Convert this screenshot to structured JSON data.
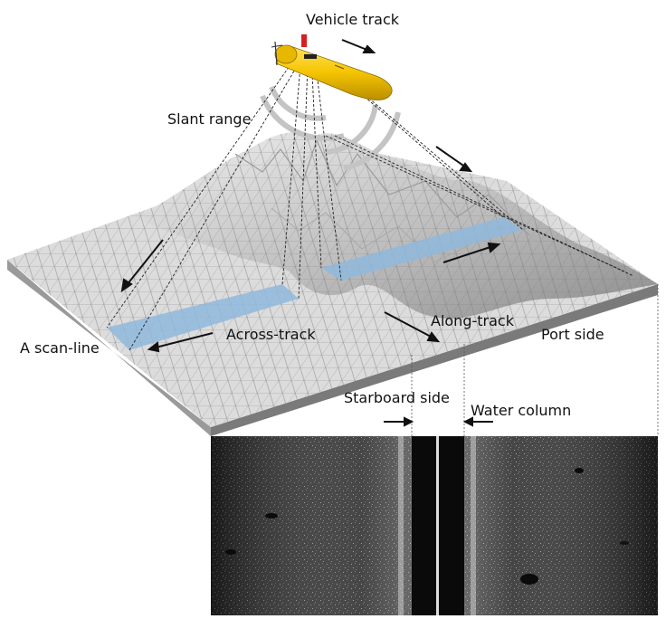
{
  "labels": {
    "vehicle_track": "Vehicle track",
    "slant_range": "Slant range",
    "along_track": "Along-track",
    "across_track": "Across-track",
    "scan_line": "A scan-line",
    "port_side": "Port side",
    "starboard_side": "Starboard side",
    "water_column": "Water column"
  },
  "vehicle": {
    "name": "auv-vehicle",
    "hull_color": "#f5c400",
    "fin_color": "#d62020"
  },
  "colors": {
    "seabed_fill": "#d6d6d6",
    "seabed_shadow": "#8f8f8f",
    "swath_fill": "#8fb8dd",
    "sonar_background": "#202020",
    "arcs": "#c4c4c4"
  }
}
